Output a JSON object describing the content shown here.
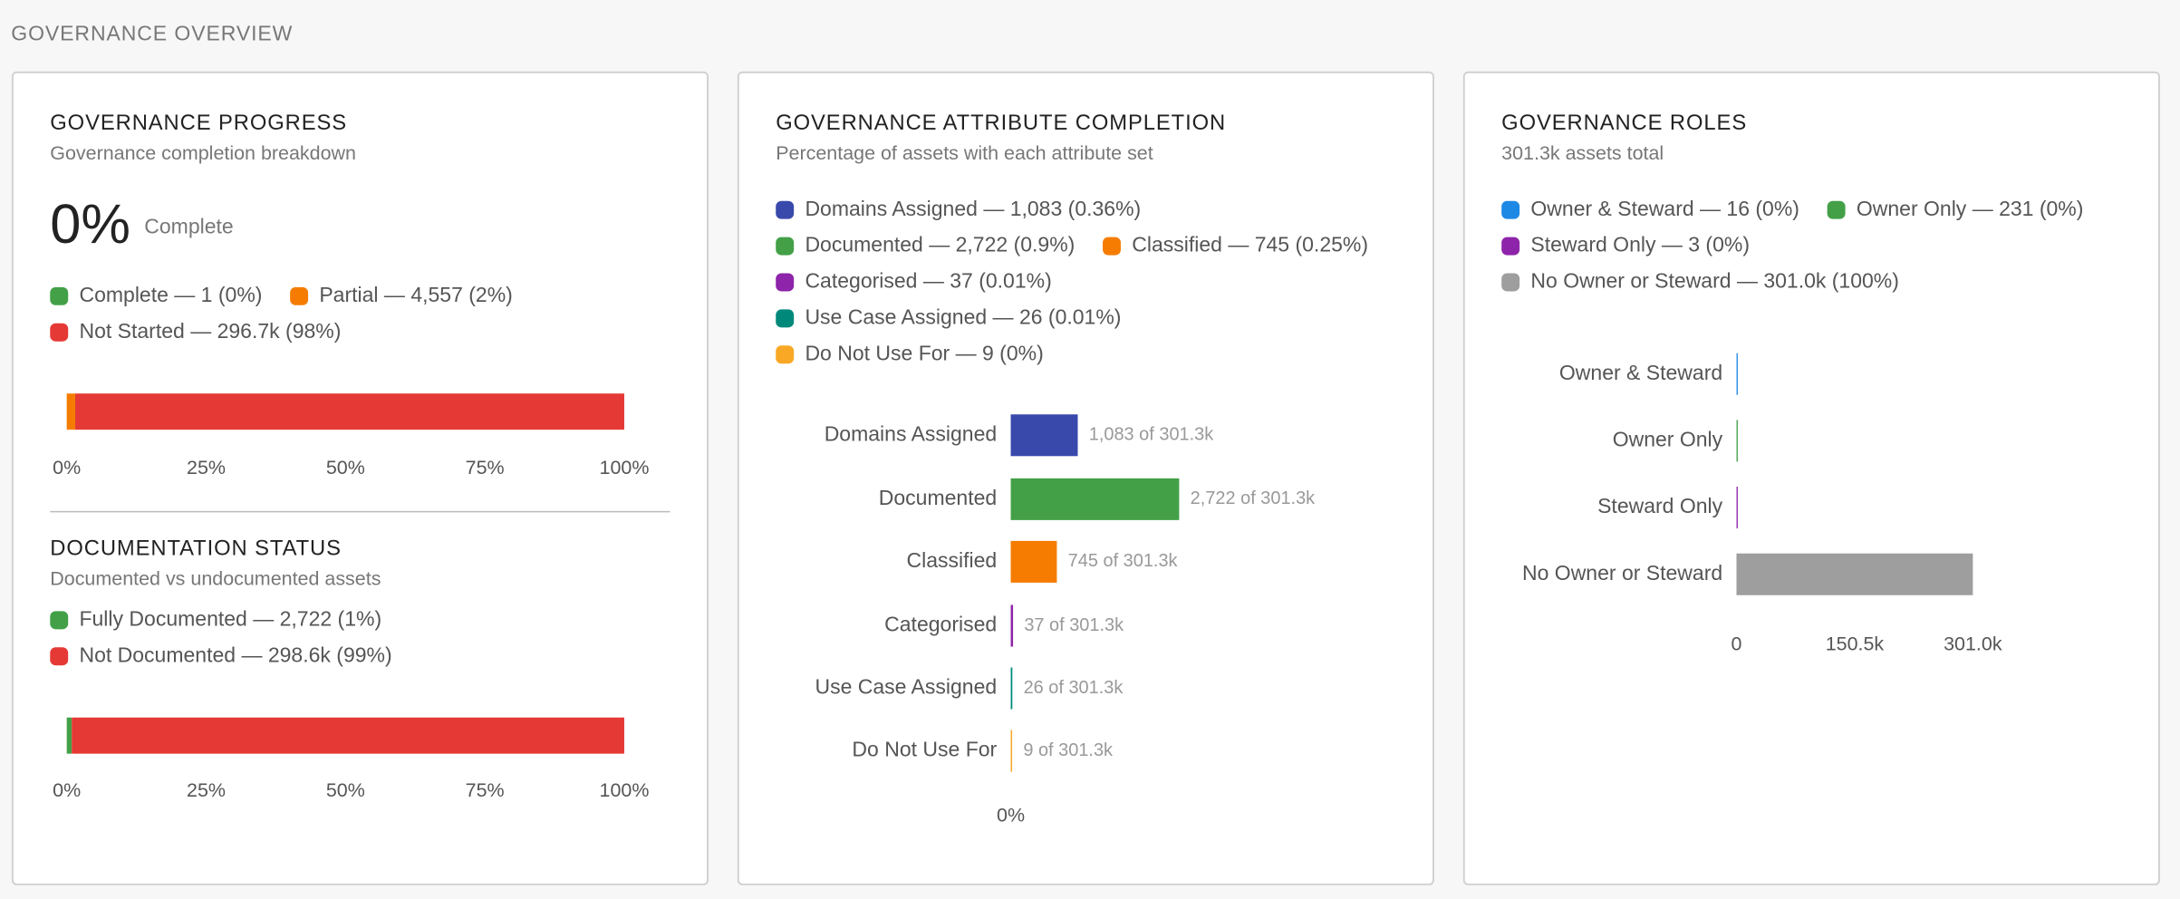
{
  "page_title": "GOVERNANCE OVERVIEW",
  "chart_data": [
    {
      "type": "stacked-bar",
      "title": "GOVERNANCE PROGRESS",
      "subtitle": "Governance completion breakdown",
      "headline": "0%",
      "headline_label": "Complete",
      "series": [
        {
          "name": "Complete — 1 (0%)",
          "color": "#43a047",
          "values": [
            0.0003
          ]
        },
        {
          "name": "Partial — 4,557 (2%)",
          "color": "#f57c00",
          "values": [
            1.51
          ]
        },
        {
          "name": "Not Started — 296.7k (98%)",
          "color": "#e53935",
          "values": [
            98.49
          ]
        }
      ],
      "xlim": [
        0,
        100
      ],
      "xticks": [
        {
          "value": 0,
          "label": "0%"
        },
        {
          "value": 25,
          "label": "25%"
        },
        {
          "value": 50,
          "label": "50%"
        },
        {
          "value": 75,
          "label": "75%"
        },
        {
          "value": 100,
          "label": "100%"
        }
      ]
    },
    {
      "type": "stacked-bar",
      "title": "DOCUMENTATION STATUS",
      "subtitle": "Documented vs undocumented assets",
      "series": [
        {
          "name": "Fully Documented — 2,722 (1%)",
          "color": "#43a047",
          "values": [
            0.9
          ]
        },
        {
          "name": "Not Documented — 298.6k (99%)",
          "color": "#e53935",
          "values": [
            99.1
          ]
        }
      ],
      "xlim": [
        0,
        100
      ],
      "xticks": [
        {
          "value": 0,
          "label": "0%"
        },
        {
          "value": 25,
          "label": "25%"
        },
        {
          "value": 50,
          "label": "50%"
        },
        {
          "value": 75,
          "label": "75%"
        },
        {
          "value": 100,
          "label": "100%"
        }
      ]
    },
    {
      "type": "hbar",
      "title": "GOVERNANCE ATTRIBUTE COMPLETION",
      "subtitle": "Percentage of assets with each attribute set",
      "legend": [
        {
          "name": "Domains Assigned — 1,083 (0.36%)",
          "color": "#3949ab"
        },
        {
          "name": "Documented — 2,722 (0.9%)",
          "color": "#43a047"
        },
        {
          "name": "Classified — 745 (0.25%)",
          "color": "#f57c00"
        },
        {
          "name": "Categorised — 37 (0.01%)",
          "color": "#8e24aa"
        },
        {
          "name": "Use Case Assigned — 26 (0.01%)",
          "color": "#00897b"
        },
        {
          "name": "Do Not Use For — 9 (0%)",
          "color": "#f9a825"
        }
      ],
      "categories": [
        "Domains Assigned",
        "Documented",
        "Classified",
        "Categorised",
        "Use Case Assigned",
        "Do Not Use For"
      ],
      "values": [
        1083,
        2722,
        745,
        37,
        26,
        9
      ],
      "value_labels": [
        "1,083 of 301.3k",
        "2,722 of 301.3k",
        "745 of 301.3k",
        "37 of 301.3k",
        "26 of 301.3k",
        "9 of 301.3k"
      ],
      "colors": [
        "#3949ab",
        "#43a047",
        "#f57c00",
        "#8e24aa",
        "#00897b",
        "#f9a825"
      ],
      "xlim": [
        0,
        6000
      ],
      "xticks": [
        {
          "value": 0,
          "label": "0%"
        }
      ]
    },
    {
      "type": "hbar",
      "title": "GOVERNANCE ROLES",
      "subtitle": "301.3k assets total",
      "legend": [
        {
          "name": "Owner & Steward — 16 (0%)",
          "color": "#1e88e5"
        },
        {
          "name": "Owner Only — 231 (0%)",
          "color": "#43a047"
        },
        {
          "name": "Steward Only — 3 (0%)",
          "color": "#8e24aa"
        },
        {
          "name": "No Owner or Steward — 301.0k (100%)",
          "color": "#9e9e9e"
        }
      ],
      "categories": [
        "Owner & Steward",
        "Owner Only",
        "Steward Only",
        "No Owner or Steward"
      ],
      "values": [
        16,
        231,
        3,
        301000
      ],
      "colors": [
        "#1e88e5",
        "#43a047",
        "#8e24aa",
        "#9e9e9e"
      ],
      "xlim": [
        0,
        301000
      ],
      "xticks": [
        0,
        {
          "value": 150500,
          "label": "150.5k"
        },
        {
          "value": 301000,
          "label": "301.0k"
        }
      ]
    }
  ]
}
